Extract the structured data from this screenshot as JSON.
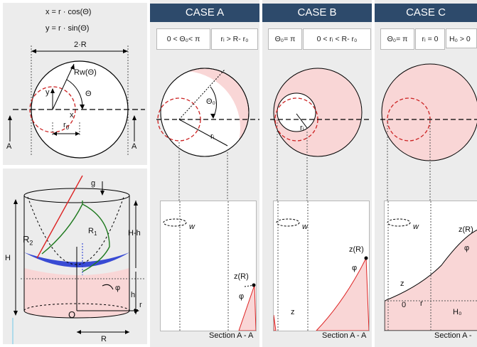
{
  "colors": {
    "header_bg": "#2d4a6b",
    "fill_pink": "#f9d6d6",
    "dashed_red": "#cc2222",
    "blue": "#1a2fd0",
    "green": "#1f7a1f",
    "red_line": "#dd2222"
  },
  "top_left": {
    "eq1": "x = r · cos(Θ)",
    "eq2": "y = r · sin(Θ)",
    "diam": "2·R",
    "rw": "Rw(Θ)",
    "theta": "Θ",
    "y": "y",
    "x": "x",
    "r0": "r",
    "r0_sub": "0",
    "sectionA": "A"
  },
  "bottom_left": {
    "g": "g",
    "R2": "R",
    "R2_sub": "2",
    "R1": "R",
    "R1_sub": "1",
    "H": "H",
    "Hh": "H-h",
    "h": "h",
    "phi": "φ",
    "O": "O",
    "r": "r",
    "R": "R"
  },
  "cases": [
    {
      "title": "CASE A",
      "cond1": "0 < Θ₀< π",
      "cond2": "rᵢ > R- r₀",
      "theta0": "Θ₀",
      "ri": "rᵢ",
      "w": "w",
      "zR": "z(R)",
      "phi": "φ",
      "section": "Section A - A"
    },
    {
      "title": "CASE B",
      "cond1": "Θ₀= π",
      "cond2": "0 < rᵢ < R- r₀",
      "ri": "rᵢ",
      "w": "w",
      "zR": "z(R)",
      "phi": "φ",
      "z": "z",
      "section": "Section A - A"
    },
    {
      "title": "CASE C",
      "cond1": "Θ₀= π",
      "cond2": "rᵢ = 0",
      "cond3": "H₀ > 0",
      "w": "w",
      "zR": "z(R)",
      "phi": "φ",
      "z": "z",
      "r": "r",
      "zero": "0",
      "H0": "H₀",
      "section": "Section A -"
    }
  ]
}
